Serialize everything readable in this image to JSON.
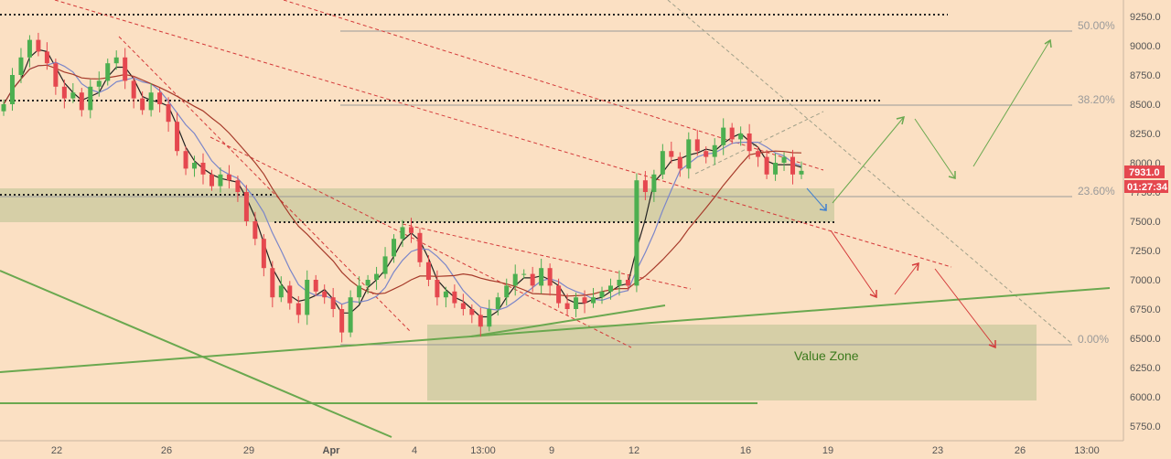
{
  "chart_data": {
    "type": "candlestick",
    "symbol_price_tag": "7931.0",
    "countdown_tag": "01:27:34",
    "y_ticks": [
      "9250.0",
      "9000.0",
      "8750.0",
      "8500.0",
      "8250.0",
      "8000.0",
      "7750.0",
      "7500.0",
      "7250.0",
      "7000.0",
      "6750.0",
      "6500.0",
      "6250.0",
      "6000.0",
      "5750.0"
    ],
    "y_values": [
      9250,
      9000,
      8750,
      8500,
      8250,
      8000,
      7750,
      7500,
      7250,
      7000,
      6750,
      6500,
      6250,
      6000,
      5750
    ],
    "x_ticks": [
      "22",
      "26",
      "29",
      "Apr",
      "4",
      "13:00",
      "9",
      "12",
      "16",
      "19",
      "23",
      "26",
      "13:00"
    ],
    "fib_levels": [
      {
        "label": "50.00%",
        "price": 9120
      },
      {
        "label": "38.20%",
        "price": 8490
      },
      {
        "label": "23.60%",
        "price": 7720
      },
      {
        "label": "0.00%",
        "price": 6450
      }
    ],
    "zone_label": "Value Zone",
    "closes": [
      8500,
      8750,
      8900,
      9050,
      8950,
      8850,
      8650,
      8550,
      8600,
      8450,
      8650,
      8700,
      8850,
      8900,
      8700,
      8550,
      8450,
      8600,
      8500,
      8350,
      8100,
      7950,
      8000,
      7900,
      7800,
      7900,
      7850,
      7750,
      7500,
      7350,
      7100,
      6850,
      6950,
      6800,
      6700,
      7000,
      6900,
      6850,
      6750,
      6550,
      6850,
      6950,
      7000,
      7050,
      7200,
      7350,
      7450,
      7400,
      7150,
      7000,
      6850,
      6900,
      6800,
      6750,
      6700,
      6600,
      6750,
      6850,
      6950,
      7050,
      7050,
      6950,
      7100,
      6950,
      6800,
      6750,
      6850,
      6800,
      6850,
      6900,
      6950,
      7000,
      6950,
      7850,
      7750,
      7900,
      8100,
      8050,
      7950,
      8200,
      8100,
      8050,
      8150,
      8300,
      8200,
      8250,
      8100,
      8050,
      7900,
      8000,
      8050,
      7900,
      7931
    ],
    "price_range": [
      5650,
      9350
    ]
  },
  "colors": {
    "background": "#fbe0c3",
    "up": "#4caf50",
    "down": "#e5484f",
    "zone": "#d8d4a9",
    "trendline_green": "#6aa84f",
    "trendline_red": "#d43a3a",
    "ma_black": "#222222",
    "ma_blue": "#7b86c9",
    "ma_brown": "#a63a2a"
  }
}
